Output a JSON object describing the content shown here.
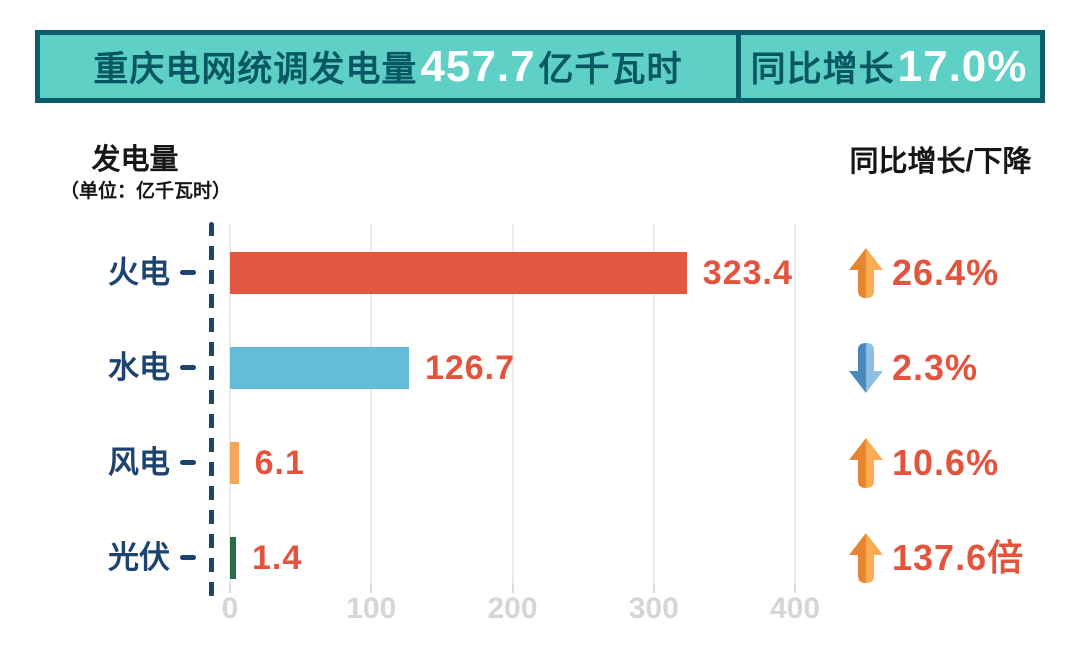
{
  "banner": {
    "left_label": "重庆电网统调发电量",
    "left_value": "457.7",
    "left_unit": "亿千瓦时",
    "right_label": "同比增长",
    "right_value": "17.0%",
    "bg_color": "#5fd0c6",
    "border_color": "#0c5d6c",
    "label_color": "#075863",
    "value_color": "#ffffff"
  },
  "columns": {
    "left_title": "发电量",
    "left_subtitle": "（单位：亿千瓦时）",
    "right_title": "同比增长/下降"
  },
  "chart_data": {
    "type": "bar",
    "orientation": "horizontal",
    "title": "重庆电网统调发电量",
    "categories": [
      "火电",
      "水电",
      "风电",
      "光伏"
    ],
    "values": [
      323.4,
      126.7,
      6.1,
      1.4
    ],
    "value_labels": [
      "323.4",
      "126.7",
      "6.1",
      "1.4"
    ],
    "bar_colors": [
      "#e2573f",
      "#63bcd8",
      "#f4a75b",
      "#2c6b45"
    ],
    "changes": [
      {
        "direction": "up",
        "label": "26.4%"
      },
      {
        "direction": "down",
        "label": "2.3%"
      },
      {
        "direction": "up",
        "label": "10.6%"
      },
      {
        "direction": "up",
        "label": "137.6倍"
      }
    ],
    "x_ticks": [
      "0",
      "100",
      "200",
      "300",
      "400"
    ],
    "xlim": [
      0,
      460
    ],
    "grid": true,
    "legend": "none",
    "category_color": "#1d4370",
    "value_label_color": "#e4543c",
    "axis_tick_color": "#d6d6d6",
    "up_arrow_colors": [
      "#e8842f",
      "#f9ac51"
    ],
    "down_arrow_colors": [
      "#4788bd",
      "#8fc0e3"
    ]
  }
}
